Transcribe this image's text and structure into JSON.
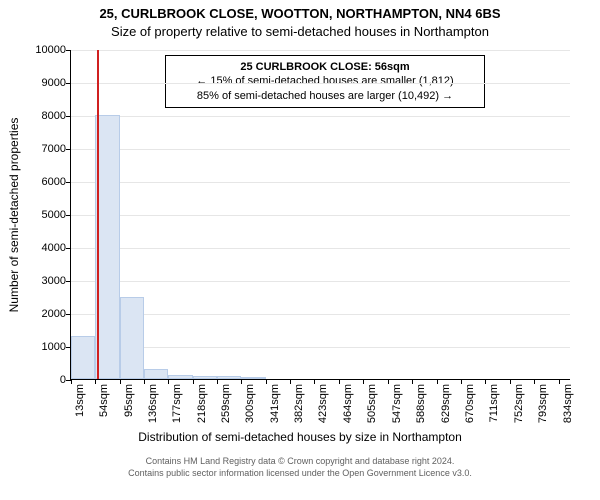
{
  "chart": {
    "type": "histogram",
    "title_main": "25, CURLBROOK CLOSE, WOOTTON, NORTHAMPTON, NN4 6BS",
    "title_sub": "Size of property relative to semi-detached houses in Northampton",
    "title_fontsize": 13,
    "ylabel": "Number of semi-detached properties",
    "xlabel": "Distribution of semi-detached houses by size in Northampton",
    "label_fontsize": 12,
    "background_color": "#ffffff",
    "grid_color": "#e6e6e6",
    "bar_fill": "#dbe5f3",
    "bar_stroke": "#b8cce8",
    "marker_color": "#d02020",
    "x_min": 13,
    "x_max": 855,
    "x_ticks": [
      13,
      54,
      95,
      136,
      177,
      218,
      259,
      300,
      341,
      382,
      423,
      464,
      505,
      547,
      588,
      629,
      670,
      711,
      752,
      793,
      834
    ],
    "x_tick_labels": [
      "13sqm",
      "54sqm",
      "95sqm",
      "136sqm",
      "177sqm",
      "218sqm",
      "259sqm",
      "300sqm",
      "341sqm",
      "382sqm",
      "423sqm",
      "464sqm",
      "505sqm",
      "547sqm",
      "588sqm",
      "629sqm",
      "670sqm",
      "711sqm",
      "752sqm",
      "793sqm",
      "834sqm"
    ],
    "x_tick_fontsize": 11,
    "y_min": 0,
    "y_max": 10000,
    "y_ticks": [
      0,
      1000,
      2000,
      3000,
      4000,
      5000,
      6000,
      7000,
      8000,
      9000,
      10000
    ],
    "y_tick_fontsize": 11,
    "bars": [
      {
        "x0": 13,
        "x1": 54,
        "count": 1300
      },
      {
        "x0": 54,
        "x1": 95,
        "count": 8000
      },
      {
        "x0": 95,
        "x1": 136,
        "count": 2500
      },
      {
        "x0": 136,
        "x1": 177,
        "count": 300
      },
      {
        "x0": 177,
        "x1": 218,
        "count": 120
      },
      {
        "x0": 218,
        "x1": 259,
        "count": 100
      },
      {
        "x0": 259,
        "x1": 300,
        "count": 80
      },
      {
        "x0": 300,
        "x1": 341,
        "count": 50
      }
    ],
    "marker_x": 56,
    "annotation": {
      "line1": "25 CURLBROOK CLOSE: 56sqm",
      "line2": "← 15% of semi-detached houses are smaller (1,812)",
      "line3": "85% of semi-detached houses are larger (10,492) →",
      "fontsize": 11,
      "border_color": "#000000"
    }
  },
  "credits": {
    "line1": "Contains HM Land Registry data © Crown copyright and database right 2024.",
    "line2": "Contains public sector information licensed under the Open Government Licence v3.0.",
    "fontsize": 9,
    "color": "#606060"
  }
}
